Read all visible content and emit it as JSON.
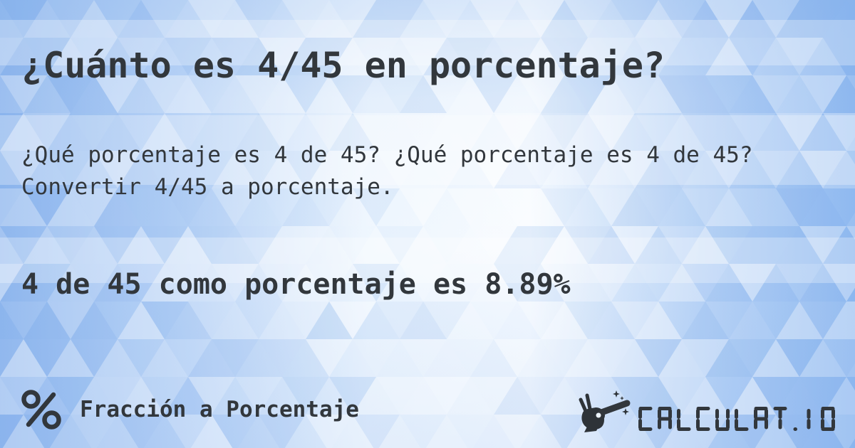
{
  "page": {
    "title": "¿Cuánto es 4/45 en porcentaje?",
    "description": "¿Qué porcentaje es 4 de 45? ¿Qué porcentaje es 4 de 45? Convertir 4/45 a porcentaje.",
    "answer": "4 de 45 como porcentaje es 8.89%"
  },
  "footer": {
    "category_label": "Fracción a Porcentaje",
    "category_icon": "percent-icon",
    "brand": "CALCULAT.IO",
    "brand_icon": "magic-wand-hand-icon"
  },
  "colors": {
    "text": "#32373c",
    "background_blue": "#8fb9f0",
    "background_light": "#f8fbff",
    "band_overlay": "rgba(255,255,255,0.28)"
  }
}
